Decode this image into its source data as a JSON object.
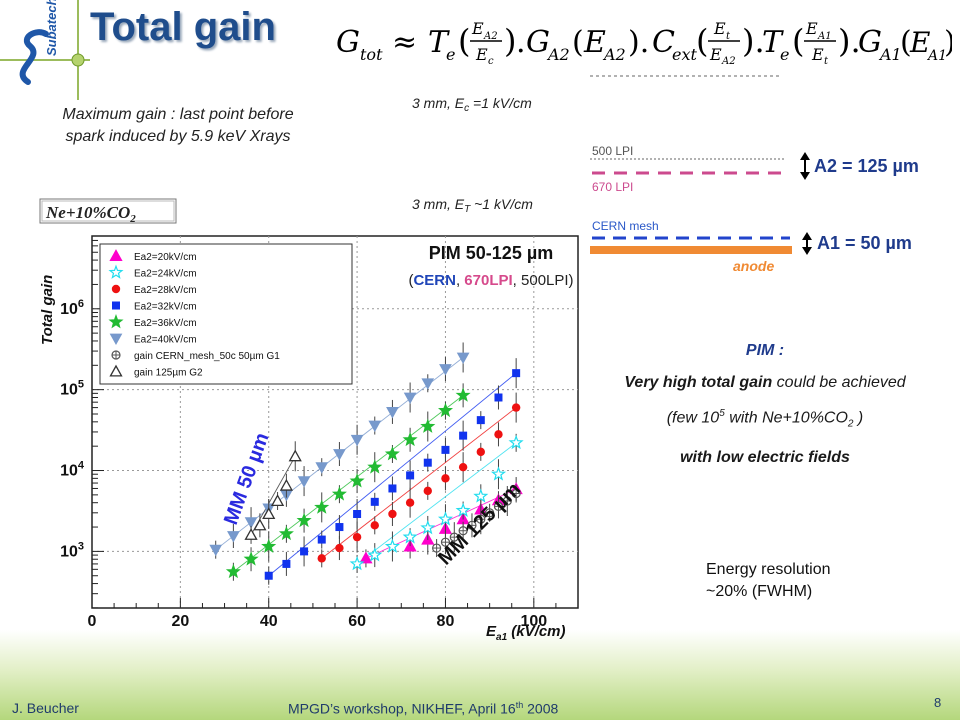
{
  "slide": {
    "title": "Total gain",
    "equation": {
      "lhs": "G",
      "lhs_sub": "tot",
      "approx": "≈"
    },
    "top_left_note_line1": "Maximum gain : last point before",
    "top_left_note_line2": "spark induced by 5.9 keV Xrays",
    "pim_title": "PIM 50-125 µm",
    "pim_sub_open": "(",
    "pim_sub_cern": "CERN",
    "pim_sub_sep1": ", ",
    "pim_sub_670": "670LPI",
    "pim_sub_rest": ", 500LPI)",
    "schema": {
      "label_ec": "3 mm, E",
      "label_ec_sub": "c",
      "label_ec_rest": " =1 kV/cm",
      "label_et": "3 mm, E",
      "label_et_sub": "T",
      "label_et_rest": " ~1 kV/cm",
      "mesh_500": "500 LPI",
      "mesh_670": "670 LPI",
      "mesh_cern": "CERN mesh",
      "anode": "anode",
      "a2": "A2 = 125 µm",
      "a1": "A1 = 50 µm"
    },
    "pim_note": {
      "heading": "PIM :",
      "line1_bold": "Very high total gain",
      "line1_rest": " could be achieved",
      "line2_pre": "(few 10",
      "line2_sup": "5",
      "line2_mid": " with Ne+10%CO",
      "line2_sub": "2",
      "line2_end": " )",
      "line3": "with low electric fields"
    },
    "energy_res_line1": "Energy resolution",
    "energy_res_line2": "~20% (FWHM)",
    "footer": {
      "author": "J. Beucher",
      "workshop_pre": "MPGD’s workshop, NIKHEF,  April 16",
      "workshop_sup": "th",
      "workshop_post": " 2008",
      "page": "8"
    },
    "logo_text": "Subatech"
  },
  "chart_data": {
    "type": "scatter",
    "title": "Ne+10%CO2",
    "xlabel": "E_a1 (kV/cm)",
    "ylabel": "Total gain",
    "xlim": [
      0,
      110
    ],
    "ylim_log10": [
      2.3,
      6.9
    ],
    "x_ticks": [
      "0",
      "20",
      "40",
      "60",
      "80",
      "100"
    ],
    "y_ticks": [
      "10^3",
      "10^4",
      "10^5",
      "10^6"
    ],
    "grid": true,
    "legend_position": "top-left",
    "annotation_mm50": "MM 50 µm",
    "annotation_mm125": "MM 125 µm",
    "colors": {
      "ea2_20": "#ff00cc",
      "ea2_24": "#22ddee",
      "ea2_28": "#ee1111",
      "ea2_32": "#1133ee",
      "ea2_36": "#22bb33",
      "ea2_40": "#7799cc",
      "cern_mesh": "#555555",
      "g125": "#333333"
    },
    "series": [
      {
        "name": "Ea2=20kV/cm",
        "marker": "triangle-filled",
        "color_key": "ea2_20",
        "x": [
          62,
          72,
          76,
          80,
          84,
          88,
          92,
          96
        ],
        "y": [
          820,
          1150,
          1400,
          1900,
          2500,
          3300,
          4300,
          5900
        ]
      },
      {
        "name": "Ea2=24kV/cm",
        "marker": "star-open",
        "color_key": "ea2_24",
        "x": [
          60,
          64,
          68,
          72,
          76,
          80,
          84,
          88,
          92,
          96
        ],
        "y": [
          700,
          900,
          1150,
          1500,
          1950,
          2500,
          3200,
          4800,
          9000,
          22000
        ]
      },
      {
        "name": "Ea2=28kV/cm",
        "marker": "circle-filled",
        "color_key": "ea2_28",
        "x": [
          52,
          56,
          60,
          64,
          68,
          72,
          76,
          80,
          84,
          88,
          92,
          96
        ],
        "y": [
          820,
          1100,
          1500,
          2100,
          2900,
          4000,
          5600,
          8000,
          11000,
          17000,
          28000,
          60000
        ]
      },
      {
        "name": "Ea2=32kV/cm",
        "marker": "square-filled",
        "color_key": "ea2_32",
        "x": [
          40,
          44,
          48,
          52,
          56,
          60,
          64,
          68,
          72,
          76,
          80,
          84,
          88,
          92,
          96
        ],
        "y": [
          500,
          700,
          1000,
          1400,
          2000,
          2900,
          4100,
          6000,
          8700,
          12500,
          18000,
          27000,
          42000,
          80000,
          160000
        ]
      },
      {
        "name": "Ea2=36kV/cm",
        "marker": "star-filled",
        "color_key": "ea2_36",
        "x": [
          32,
          36,
          40,
          44,
          48,
          52,
          56,
          60,
          64,
          68,
          72,
          76,
          80,
          84
        ],
        "y": [
          560,
          800,
          1150,
          1650,
          2400,
          3500,
          5100,
          7400,
          11000,
          16000,
          24000,
          35000,
          55000,
          85000
        ]
      },
      {
        "name": "Ea2=40kV/cm",
        "marker": "triangle-down-filled",
        "color_key": "ea2_40",
        "x": [
          28,
          32,
          36,
          40,
          44,
          48,
          52,
          56,
          60,
          64,
          68,
          72,
          76,
          80,
          84
        ],
        "y": [
          1050,
          1550,
          2300,
          3400,
          5000,
          7400,
          11000,
          16000,
          24000,
          36000,
          53000,
          80000,
          120000,
          180000,
          250000
        ]
      },
      {
        "name": "gain CERN_mesh_50c 50µm G1",
        "marker": "cross-circle",
        "color_key": "cern_mesh",
        "x": [
          78,
          80,
          82,
          84,
          86,
          88,
          90,
          92,
          94,
          96
        ],
        "y": [
          1100,
          1300,
          1500,
          1800,
          2100,
          2500,
          3000,
          3600,
          4200,
          5200
        ]
      },
      {
        "name": "gain 125µm G2",
        "marker": "triangle-open",
        "color_key": "g125",
        "x": [
          36,
          38,
          40,
          42,
          44,
          46
        ],
        "y": [
          1600,
          2100,
          2900,
          4200,
          6500,
          15000
        ]
      }
    ]
  }
}
